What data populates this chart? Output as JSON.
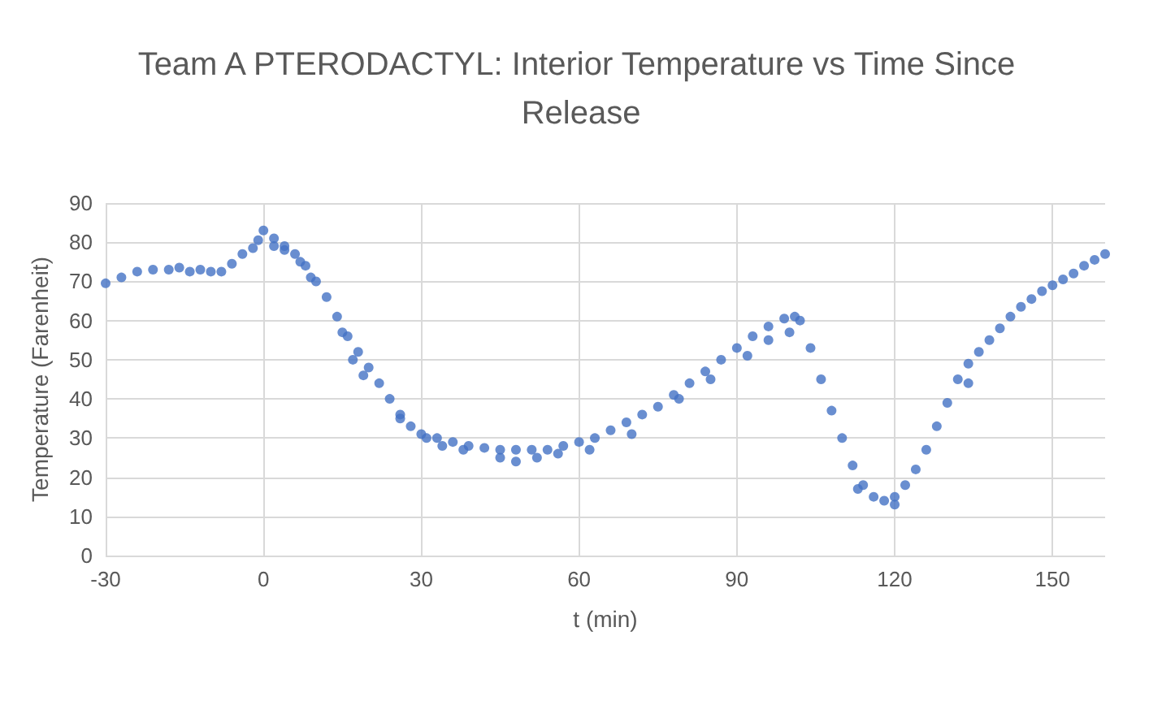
{
  "chart_data": {
    "type": "scatter",
    "title": "Team A PTERODACTYL: Interior Temperature vs Time Since Release",
    "xlabel": "t (min)",
    "ylabel": "Temperature (Farenheit)",
    "series": [
      {
        "color": "#4472c4",
        "x": [
          -30,
          -27,
          -24,
          -21,
          -18,
          -16,
          -14,
          -12,
          -10,
          -8,
          -6,
          -4,
          -2,
          -1,
          0,
          2,
          4,
          6,
          8,
          10,
          12,
          14,
          16,
          18,
          20,
          22,
          24,
          26,
          28,
          30,
          33,
          36,
          39,
          42,
          45,
          48,
          51,
          54,
          57,
          60,
          63,
          66,
          69,
          72,
          75,
          78,
          81,
          84,
          87,
          90,
          93,
          96,
          99,
          101,
          102,
          104,
          106,
          108,
          110,
          112,
          114,
          116,
          118,
          120,
          122,
          124,
          126,
          128,
          130,
          132,
          134,
          136,
          138,
          140,
          142,
          144,
          146,
          148,
          150,
          152,
          154,
          156,
          158,
          160,
          2,
          4,
          7,
          9,
          15,
          17,
          19,
          26,
          31,
          34,
          38,
          45,
          48,
          52,
          56,
          62,
          70,
          79,
          85,
          92,
          96,
          100,
          113,
          120,
          134
        ],
        "values": [
          69.5,
          71,
          72.5,
          73,
          73,
          73.5,
          72.5,
          73,
          72.5,
          72.5,
          74.5,
          77,
          78.5,
          80.5,
          83,
          81,
          79,
          77,
          74,
          70,
          66,
          61,
          56,
          52,
          48,
          44,
          40,
          36,
          33,
          31,
          30,
          29,
          28,
          27.5,
          27,
          27,
          27,
          27,
          28,
          29,
          30,
          32,
          34,
          36,
          38,
          41,
          44,
          47,
          50,
          53,
          56,
          58.5,
          60.5,
          61,
          60,
          53,
          45,
          37,
          30,
          23,
          18,
          15,
          14,
          15,
          18,
          22,
          27,
          33,
          39,
          45,
          49,
          52,
          55,
          58,
          61,
          63.5,
          65.5,
          67.5,
          69,
          70.5,
          72,
          74,
          75.5,
          77,
          79,
          78,
          75,
          71,
          57,
          50,
          46,
          35,
          30,
          28,
          27,
          25,
          24,
          25,
          26,
          27,
          31,
          40,
          45,
          51,
          55,
          57,
          17,
          13,
          44
        ]
      }
    ],
    "xlim": [
      -30,
      160
    ],
    "xticks": [
      -30,
      0,
      30,
      60,
      90,
      120,
      150
    ],
    "ylim": [
      0,
      90
    ],
    "yticks": [
      0,
      10,
      20,
      30,
      40,
      50,
      60,
      70,
      80,
      90
    ],
    "grid": true,
    "marker": "circle"
  }
}
